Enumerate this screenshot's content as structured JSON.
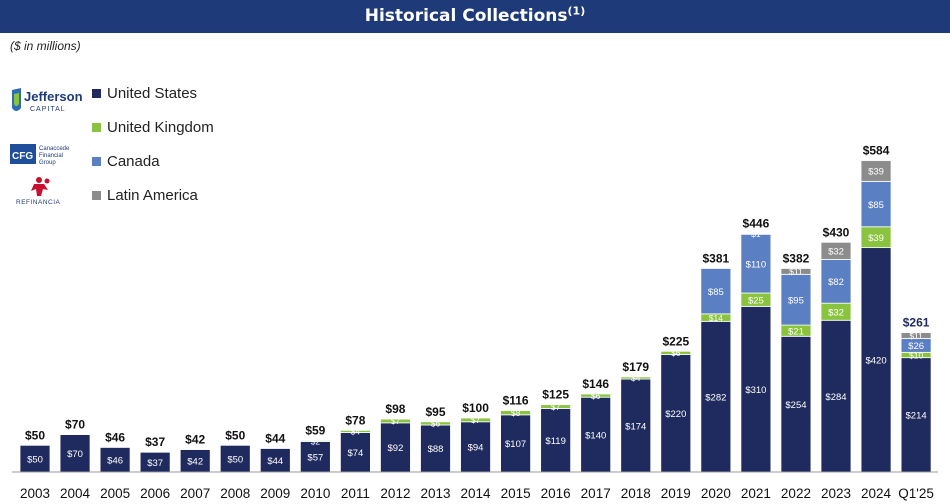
{
  "title": "Historical Collections",
  "title_footnote": "(1)",
  "subtitle": "($ in millions)",
  "logos": {
    "jefferson_name": "Jefferson",
    "jefferson_sub": "CAPITAL",
    "cfg_abbr": "CFG",
    "cfg_name": [
      "Canaccede",
      "Financial",
      "Group"
    ],
    "refinancia": "REFINANCIA"
  },
  "colors": {
    "us": "#1f2a5e",
    "uk": "#8ac43f",
    "canada": "#5b7fc3",
    "latam": "#8c8c8c",
    "title_bg": "#1f3a78"
  },
  "chart_data": {
    "type": "bar",
    "stacked": true,
    "title": "Historical Collections",
    "ylabel": "($ in millions)",
    "legend_position": "top-left",
    "categories": [
      "2003",
      "2004",
      "2005",
      "2006",
      "2007",
      "2008",
      "2009",
      "2010",
      "2011",
      "2012",
      "2013",
      "2014",
      "2015",
      "2016",
      "2017",
      "2018",
      "2019",
      "2020",
      "2021",
      "2022",
      "2023",
      "2024",
      "Q1'25"
    ],
    "totals": [
      50,
      70,
      46,
      37,
      42,
      50,
      44,
      59,
      78,
      98,
      95,
      100,
      116,
      125,
      146,
      179,
      225,
      381,
      446,
      382,
      430,
      584,
      261
    ],
    "total_labels": [
      "$50",
      "$70",
      "$46",
      "$37",
      "$42",
      "$50",
      "$44",
      "$59",
      "$78",
      "$98",
      "$95",
      "$100",
      "$116",
      "$125",
      "$146",
      "$179",
      "$225",
      "$381",
      "$446",
      "$382",
      "$430",
      "$584",
      "$261"
    ],
    "series": [
      {
        "name": "United States",
        "key": "us",
        "values": [
          50,
          70,
          46,
          37,
          42,
          50,
          44,
          57,
          74,
          92,
          88,
          94,
          107,
          119,
          140,
          174,
          220,
          282,
          310,
          254,
          284,
          420,
          214
        ],
        "labels": [
          "$50",
          "$70",
          "$46",
          "$37",
          "$42",
          "$50",
          "$44",
          "$57",
          "$74",
          "$92",
          "$88",
          "$94",
          "$107",
          "$119",
          "$140",
          "$174",
          "$220",
          "$282",
          "$310",
          "$254",
          "$284",
          "$420",
          "$214"
        ]
      },
      {
        "name": "United Kingdom",
        "key": "uk",
        "values": [
          0,
          0,
          0,
          0,
          0,
          0,
          0,
          2,
          4,
          7,
          6,
          7,
          8,
          7,
          6,
          4,
          6,
          14,
          25,
          21,
          32,
          39,
          10
        ],
        "labels": [
          "",
          "",
          "",
          "",
          "",
          "",
          "",
          "$2",
          "$4",
          "$7",
          "$6",
          "$7",
          "$8",
          "$7",
          "$6",
          "$4",
          "$6",
          "$14",
          "$25",
          "$21",
          "$32",
          "$39",
          "$10"
        ]
      },
      {
        "name": "Canada",
        "key": "canada",
        "values": [
          0,
          0,
          0,
          0,
          0,
          0,
          0,
          0,
          0,
          0,
          0,
          0,
          0,
          0,
          0,
          0,
          0,
          85,
          110,
          95,
          82,
          85,
          26
        ],
        "labels": [
          "",
          "",
          "",
          "",
          "",
          "",
          "",
          "",
          "",
          "",
          "",
          "",
          "",
          "",
          "",
          "",
          "",
          "$85",
          "$110",
          "$95",
          "$82",
          "$85",
          "$26"
        ]
      },
      {
        "name": "Latin America",
        "key": "latam",
        "values": [
          0,
          0,
          0,
          0,
          0,
          0,
          0,
          0,
          0,
          0,
          0,
          0,
          0,
          0,
          0,
          0,
          0,
          0,
          1,
          11,
          32,
          39,
          11
        ],
        "labels": [
          "",
          "",
          "",
          "",
          "",
          "",
          "",
          "",
          "",
          "",
          "",
          "",
          "",
          "",
          "",
          "",
          "",
          "",
          "$1",
          "$11",
          "$32",
          "$39",
          "$11"
        ]
      }
    ],
    "ylim": [
      0,
      600
    ],
    "grid": false
  }
}
